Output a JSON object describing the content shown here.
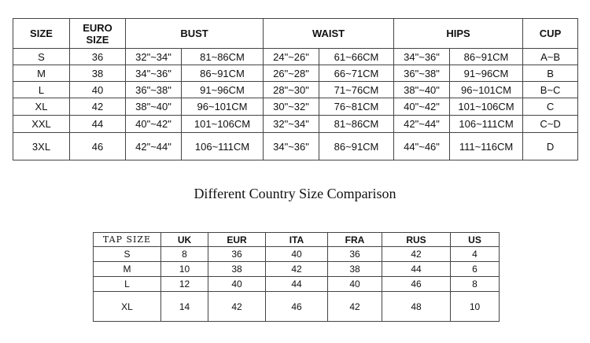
{
  "size_chart": {
    "headers": [
      "SIZE",
      "EURO SIZE",
      "BUST",
      "WAIST",
      "HIPS",
      "CUP"
    ],
    "rows": [
      [
        "S",
        "36",
        "32\"~34\"",
        "81~86CM",
        "24\"~26\"",
        "61~66CM",
        "34\"~36\"",
        "86~91CM",
        "A~B"
      ],
      [
        "M",
        "38",
        "34\"~36\"",
        "86~91CM",
        "26\"~28\"",
        "66~71CM",
        "36\"~38\"",
        "91~96CM",
        "B"
      ],
      [
        "L",
        "40",
        "36\"~38\"",
        "91~96CM",
        "28\"~30\"",
        "71~76CM",
        "38\"~40\"",
        "96~101CM",
        "B~C"
      ],
      [
        "XL",
        "42",
        "38\"~40\"",
        "96~101CM",
        "30\"~32\"",
        "76~81CM",
        "40\"~42\"",
        "101~106CM",
        "C"
      ],
      [
        "XXL",
        "44",
        "40\"~42\"",
        "101~106CM",
        "32\"~34\"",
        "81~86CM",
        "42\"~44\"",
        "106~111CM",
        "C~D"
      ],
      [
        "3XL",
        "46",
        "42\"~44\"",
        "106~111CM",
        "34\"~36\"",
        "86~91CM",
        "44\"~46\"",
        "111~116CM",
        "D"
      ]
    ]
  },
  "comparison": {
    "title": "Different Country Size Comparison",
    "headers": [
      "TAP SIZE",
      "UK",
      "EUR",
      "ITA",
      "FRA",
      "RUS",
      "US"
    ],
    "rows": [
      [
        "S",
        "8",
        "36",
        "40",
        "36",
        "42",
        "4"
      ],
      [
        "M",
        "10",
        "38",
        "42",
        "38",
        "44",
        "6"
      ],
      [
        "L",
        "12",
        "40",
        "44",
        "40",
        "46",
        "8"
      ],
      [
        "XL",
        "14",
        "42",
        "46",
        "42",
        "48",
        "10"
      ]
    ]
  }
}
